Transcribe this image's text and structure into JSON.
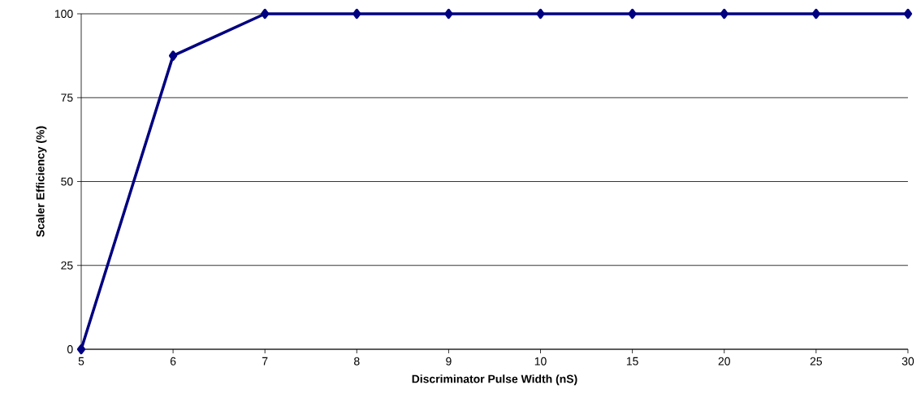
{
  "chart_data": {
    "type": "line",
    "xlabel": "Discriminator Pulse Width (nS)",
    "ylabel": "Scaler Efficiency (%)",
    "categories": [
      "5",
      "6",
      "7",
      "8",
      "9",
      "10",
      "15",
      "20",
      "25",
      "30"
    ],
    "series": [
      {
        "color": "#000080",
        "values": [
          0,
          87.5,
          100,
          100,
          100,
          100,
          100,
          100,
          100,
          100
        ]
      }
    ],
    "ylim": [
      0,
      100
    ],
    "yticks": [
      0,
      25,
      50,
      75,
      100
    ],
    "grid": "y",
    "marker": "diamond",
    "line_style": "solid"
  }
}
